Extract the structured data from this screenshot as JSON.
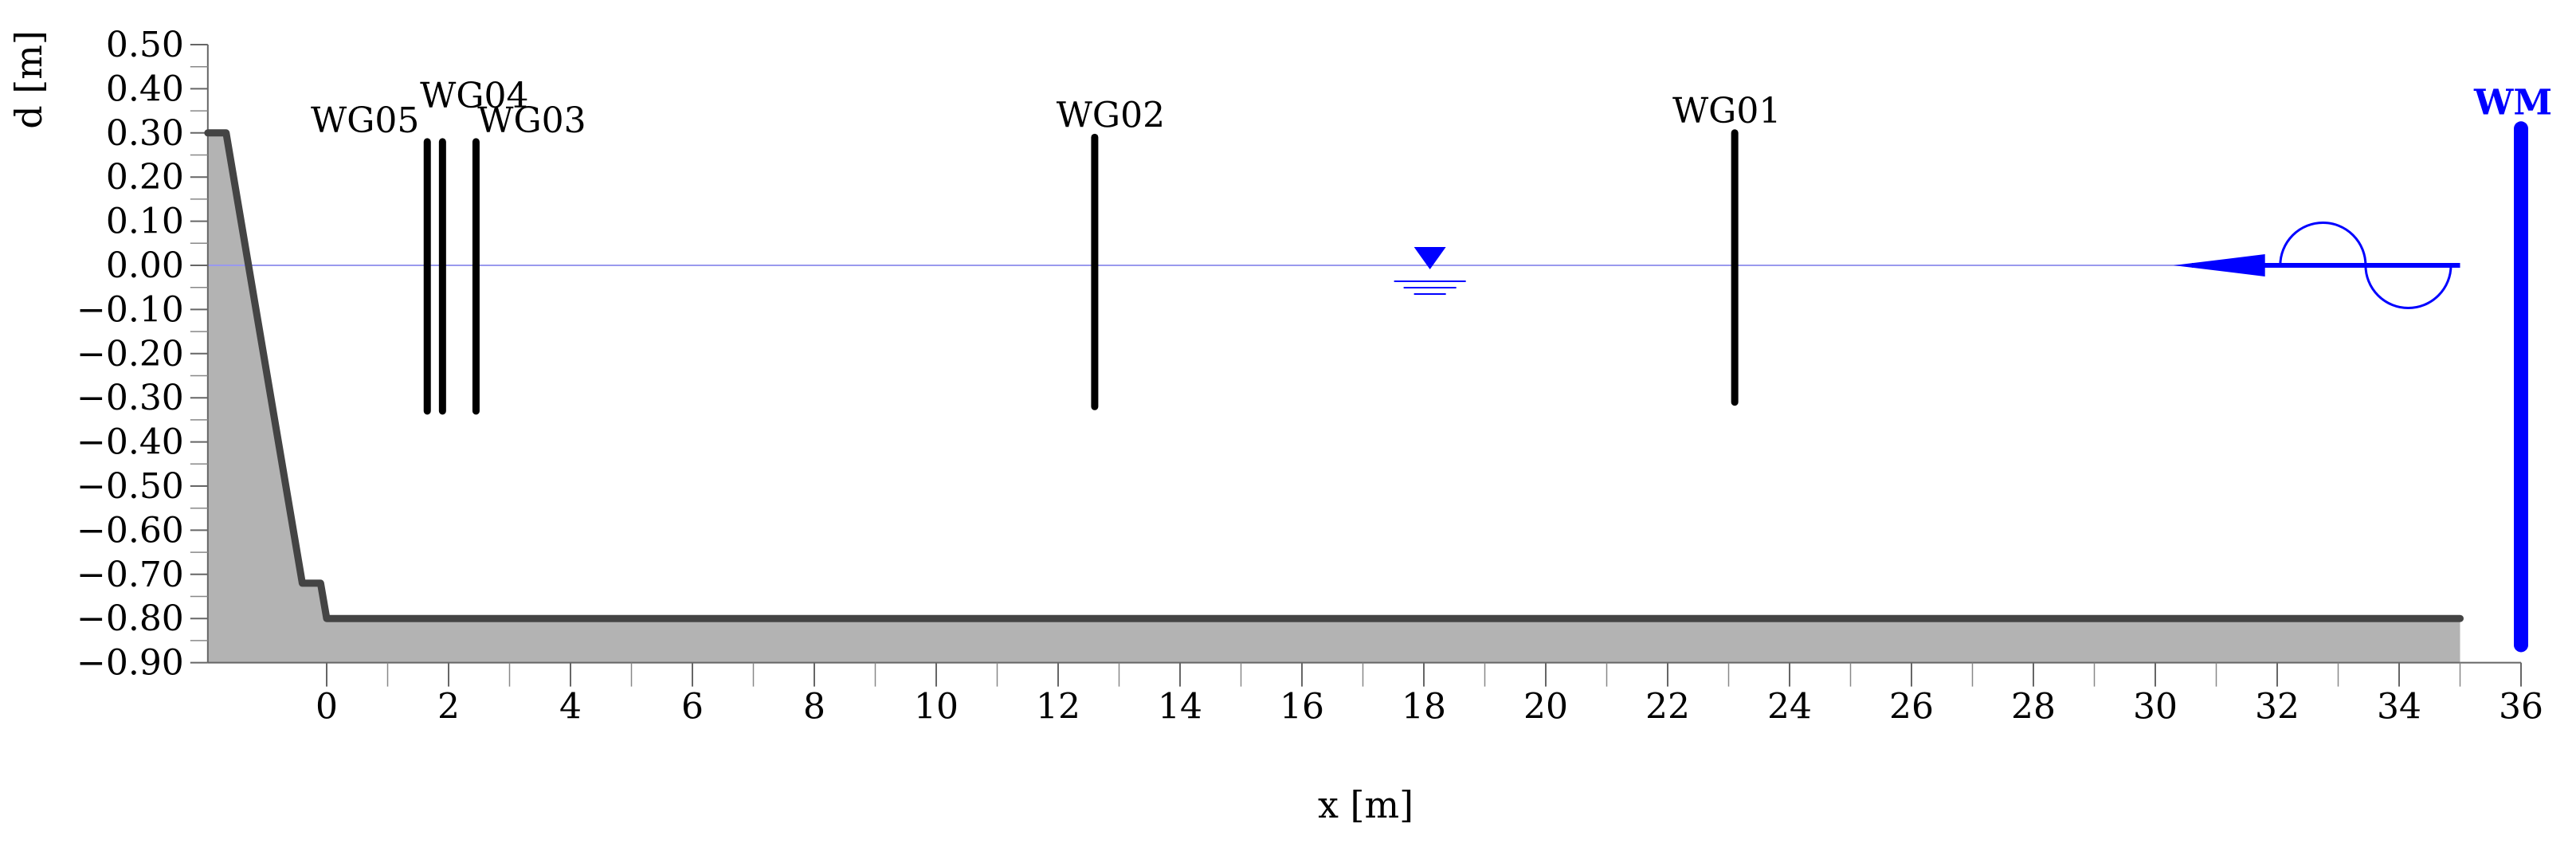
{
  "chart_data": {
    "type": "diagram",
    "xlabel": "x [m]",
    "ylabel": "d [m]",
    "xlim": [
      -1.95,
      36.05
    ],
    "ylim": [
      -0.9,
      0.5
    ],
    "x_ticks": [
      0,
      2,
      4,
      6,
      8,
      10,
      12,
      14,
      16,
      18,
      20,
      22,
      24,
      26,
      28,
      30,
      32,
      34,
      36
    ],
    "x_tick_labels": [
      "0",
      "2",
      "4",
      "6",
      "8",
      "10",
      "12",
      "14",
      "16",
      "18",
      "20",
      "22",
      "24",
      "26",
      "28",
      "30",
      "32",
      "34",
      "36"
    ],
    "y_ticks": [
      0.5,
      0.4,
      0.3,
      0.2,
      0.1,
      0.0,
      -0.1,
      -0.2,
      -0.3,
      -0.4,
      -0.5,
      -0.6,
      -0.7,
      -0.8,
      -0.9
    ],
    "y_tick_labels": [
      "0.50",
      "0.40",
      "0.30",
      "0.20",
      "0.10",
      "0.00",
      "−0.10",
      "−0.20",
      "−0.30",
      "−0.40",
      "−0.50",
      "−0.60",
      "−0.70",
      "−0.80",
      "−0.90"
    ],
    "still_water_level": 0.0,
    "bottom_profile": [
      [
        -1.95,
        0.3
      ],
      [
        -1.65,
        0.3
      ],
      [
        -0.4,
        -0.72
      ],
      [
        -0.1,
        -0.72
      ],
      [
        0.0,
        -0.8
      ],
      [
        35.0,
        -0.8
      ]
    ],
    "wave_gauges": [
      {
        "label": "WG05",
        "x": 1.65,
        "top": 0.28,
        "bottom": -0.33
      },
      {
        "label": "WG04",
        "x": 1.9,
        "top": 0.28,
        "bottom": -0.33
      },
      {
        "label": "WG03",
        "x": 2.45,
        "top": 0.28,
        "bottom": -0.33
      },
      {
        "label": "WG02",
        "x": 12.6,
        "top": 0.29,
        "bottom": -0.32
      },
      {
        "label": "WG01",
        "x": 23.1,
        "top": 0.3,
        "bottom": -0.31
      }
    ],
    "wave_maker": {
      "label": "WM",
      "x": 36.0,
      "top": 0.31,
      "bottom": -0.86
    },
    "wave_direction": "towards negative x",
    "colors": {
      "profile": "#444444",
      "fill": "#b3b3b3",
      "wave_maker": "#0000ff",
      "gauges": "#000000",
      "water_line": "#9999ee"
    }
  }
}
